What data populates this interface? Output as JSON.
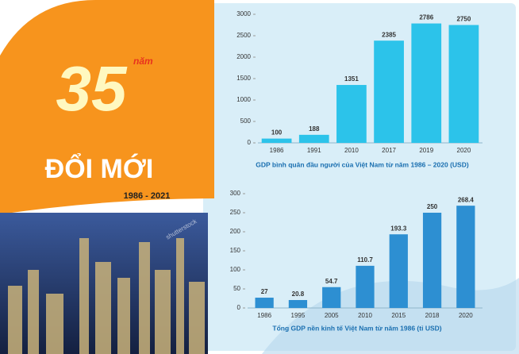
{
  "poster": {
    "number": "35",
    "unit": "năm",
    "headline": "ĐỔI MỚI",
    "period": "1986 - 2021",
    "watermark": "shutterstock"
  },
  "chart_data": [
    {
      "type": "bar",
      "title": "GDP bình quân đầu người của Việt Nam từ năm 1986 – 2020 (USD)",
      "categories": [
        "1986",
        "1991",
        "2010",
        "2017",
        "2019",
        "2020"
      ],
      "values": [
        100,
        188,
        1351,
        2385,
        2786,
        2750
      ],
      "color": "#2cc3ea",
      "ylim": [
        0,
        3000
      ],
      "yticks": [
        0,
        500,
        1000,
        1500,
        2000,
        2500,
        3000
      ]
    },
    {
      "type": "bar",
      "title": "Tổng GDP nền kinh tế Việt Nam từ năm 1986 (tỉ USD)",
      "categories": [
        "1986",
        "1995",
        "2005",
        "2010",
        "2015",
        "2018",
        "2020"
      ],
      "values": [
        27,
        20.8,
        54.7,
        110.7,
        193.3,
        250,
        268.4
      ],
      "color": "#2d8fd2",
      "ylim": [
        0,
        300
      ],
      "yticks": [
        0,
        50,
        100,
        150,
        200,
        250,
        300
      ]
    }
  ]
}
